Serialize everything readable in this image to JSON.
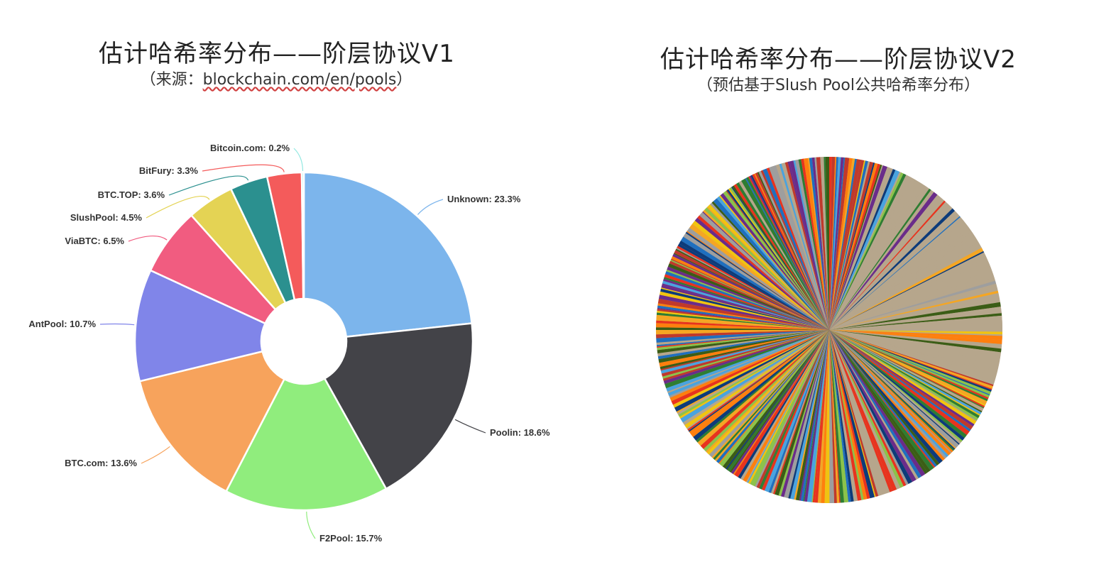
{
  "chart_data": [
    {
      "type": "pie",
      "variant": "donut",
      "title": "估计哈希率分布——阶层协议V1",
      "subtitle_prefix": "（来源：",
      "subtitle_link": "blockchain.com/en/pools",
      "subtitle_suffix": "）",
      "series": [
        {
          "name": "Unknown",
          "value": 23.3,
          "label": "Unknown: 23.3%",
          "color": "#7cb5ec"
        },
        {
          "name": "Poolin",
          "value": 18.6,
          "label": "Poolin: 18.6%",
          "color": "#434348"
        },
        {
          "name": "F2Pool",
          "value": 15.7,
          "label": "F2Pool: 15.7%",
          "color": "#90ed7d"
        },
        {
          "name": "BTC.com",
          "value": 13.6,
          "label": "BTC.com: 13.6%",
          "color": "#f7a35c"
        },
        {
          "name": "AntPool",
          "value": 10.7,
          "label": "AntPool: 10.7%",
          "color": "#8085e9"
        },
        {
          "name": "ViaBTC",
          "value": 6.5,
          "label": "ViaBTC: 6.5%",
          "color": "#f15c80"
        },
        {
          "name": "SlushPool",
          "value": 4.5,
          "label": "SlushPool: 4.5%",
          "color": "#e4d354"
        },
        {
          "name": "BTC.TOP",
          "value": 3.6,
          "label": "BTC.TOP: 3.6%",
          "color": "#2b908f"
        },
        {
          "name": "BitFury",
          "value": 3.3,
          "label": "BitFury: 3.3%",
          "color": "#f45b5b"
        },
        {
          "name": "Bitcoin.com",
          "value": 0.2,
          "label": "Bitcoin.com: 0.2%",
          "color": "#91e8e1"
        }
      ]
    },
    {
      "type": "pie",
      "title": "估计哈希率分布——阶层协议V2",
      "subtitle": "（预估基于Slush Pool公共哈希率分布）",
      "slice_count_estimate": 400,
      "colors": [
        "#1f6fbf",
        "#e8331e",
        "#8bc34a",
        "#6a2c8a",
        "#f5a623",
        "#4aa3df",
        "#c0392b",
        "#f1c40f",
        "#2e7d32",
        "#0d3b7a",
        "#ff7f0e",
        "#b6a68c",
        "#9e9e9e",
        "#3b5d16"
      ],
      "dominant_fill": "#b6a68c"
    }
  ]
}
